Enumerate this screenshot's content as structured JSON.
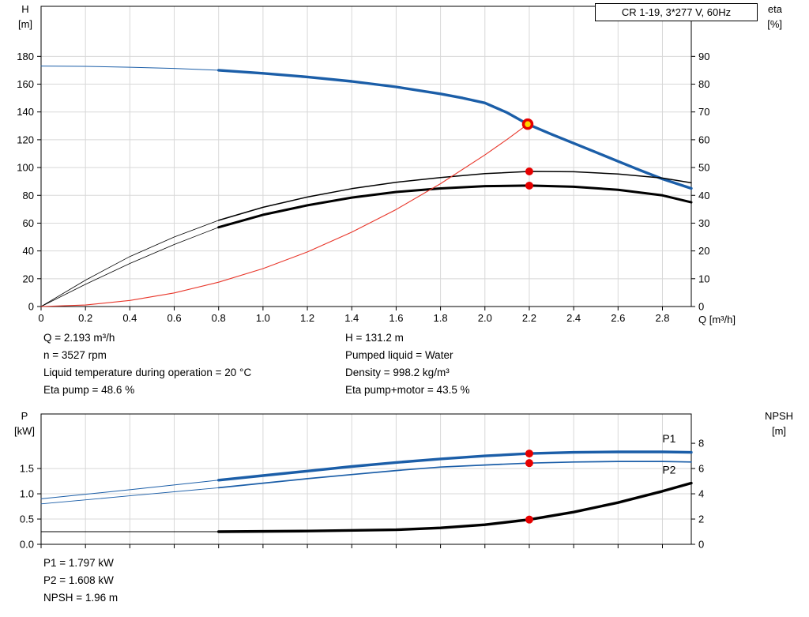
{
  "legend": {
    "label": "CR 1-19, 3*277 V, 60Hz"
  },
  "top_info": {
    "left": [
      "Q = 2.193 m³/h",
      "n = 3527 rpm",
      "Liquid temperature during operation = 20 °C",
      "Eta pump = 48.6 %"
    ],
    "right": [
      "H = 131.2 m",
      "Pumped liquid = Water",
      "Density = 998.2 kg/m³",
      "Eta pump+motor = 43.5 %"
    ]
  },
  "bottom_info": [
    "P1 = 1.797 kW",
    "P2 = 1.608 kW",
    "NPSH = 1.96 m"
  ],
  "chart_data": [
    {
      "name": "head-efficiency-chart",
      "type": "line",
      "title": "",
      "grid_color": "#d8d8d8",
      "x_axis": {
        "label": "Q [m³/h]",
        "min": 0,
        "max": 2.93,
        "show_labels": true,
        "ticks": {
          "values": [
            0,
            0.2,
            0.4,
            0.6,
            0.8,
            1.0,
            1.2,
            1.4,
            1.6,
            1.8,
            2.0,
            2.2,
            2.4,
            2.6,
            2.8
          ],
          "labels": [
            "0",
            "0.2",
            "0.4",
            "0.6",
            "0.8",
            "1.0",
            "1.2",
            "1.4",
            "1.6",
            "1.8",
            "2.0",
            "2.2",
            "2.4",
            "2.6",
            "2.8"
          ]
        }
      },
      "left_axis": {
        "name": "H",
        "unit": "[m]",
        "min": 0,
        "max": 216,
        "ticks": {
          "values": [
            0,
            20,
            40,
            60,
            80,
            100,
            120,
            140,
            160,
            180
          ],
          "labels": [
            "0",
            "20",
            "40",
            "60",
            "80",
            "100",
            "120",
            "140",
            "160",
            "180"
          ]
        }
      },
      "right_axis": {
        "name": "eta",
        "unit": "[%]",
        "min": 0,
        "max": 108,
        "ticks": {
          "values": [
            0,
            10,
            20,
            30,
            40,
            50,
            60,
            70,
            80,
            90
          ],
          "labels": [
            "0",
            "10",
            "20",
            "30",
            "40",
            "50",
            "60",
            "70",
            "80",
            "90"
          ]
        }
      },
      "series": [
        {
          "name": "head-curve-lead",
          "axis": "left",
          "color": "#1b5ea8",
          "width": 1,
          "points": [
            [
              0,
              173
            ],
            [
              0.2,
              172.8
            ],
            [
              0.4,
              172.2
            ],
            [
              0.6,
              171.3
            ],
            [
              0.8,
              170
            ]
          ]
        },
        {
          "name": "head-curve",
          "axis": "left",
          "color": "#1b5ea8",
          "width": 3.4,
          "points": [
            [
              0.8,
              170
            ],
            [
              1.0,
              167.8
            ],
            [
              1.2,
              165.2
            ],
            [
              1.4,
              162
            ],
            [
              1.6,
              158
            ],
            [
              1.8,
              153
            ],
            [
              1.9,
              150
            ],
            [
              2.0,
              146.5
            ],
            [
              2.1,
              139.5
            ],
            [
              2.193,
              131.2
            ],
            [
              2.3,
              124
            ],
            [
              2.4,
              117.5
            ],
            [
              2.5,
              111
            ],
            [
              2.6,
              104.5
            ],
            [
              2.7,
              98
            ],
            [
              2.8,
              91.8
            ],
            [
              2.93,
              85
            ]
          ]
        },
        {
          "name": "eta-pump-curve-lead",
          "axis": "right",
          "color": "#000000",
          "width": 0.8,
          "points": [
            [
              0,
              0
            ],
            [
              0.2,
              9.5
            ],
            [
              0.4,
              18
            ],
            [
              0.6,
              25
            ],
            [
              0.8,
              31
            ]
          ]
        },
        {
          "name": "eta-pump-curve",
          "axis": "right",
          "color": "#000000",
          "width": 1.5,
          "points": [
            [
              0.8,
              31
            ],
            [
              1.0,
              35.7
            ],
            [
              1.2,
              39.4
            ],
            [
              1.4,
              42.4
            ],
            [
              1.6,
              44.7
            ],
            [
              1.8,
              46.4
            ],
            [
              2.0,
              47.8
            ],
            [
              2.2,
              48.6
            ],
            [
              2.4,
              48.5
            ],
            [
              2.6,
              47.7
            ],
            [
              2.8,
              46.2
            ],
            [
              2.93,
              44.5
            ]
          ]
        },
        {
          "name": "eta-pump-motor-curve-lead",
          "axis": "right",
          "color": "#000000",
          "width": 0.8,
          "points": [
            [
              0,
              0
            ],
            [
              0.2,
              8
            ],
            [
              0.4,
              15.5
            ],
            [
              0.6,
              22.3
            ],
            [
              0.8,
              28.5
            ]
          ]
        },
        {
          "name": "eta-pump-motor-curve",
          "axis": "right",
          "color": "#000000",
          "width": 3,
          "points": [
            [
              0.8,
              28.5
            ],
            [
              1.0,
              33
            ],
            [
              1.2,
              36.4
            ],
            [
              1.4,
              39.2
            ],
            [
              1.6,
              41.2
            ],
            [
              1.8,
              42.5
            ],
            [
              2.0,
              43.3
            ],
            [
              2.2,
              43.5
            ],
            [
              2.4,
              43.1
            ],
            [
              2.6,
              42
            ],
            [
              2.8,
              40
            ],
            [
              2.93,
              37.5
            ]
          ]
        },
        {
          "name": "system-curve",
          "axis": "left",
          "color": "#e8362a",
          "width": 1.1,
          "points": [
            [
              0,
              0
            ],
            [
              0.2,
              1.1
            ],
            [
              0.4,
              4.4
            ],
            [
              0.6,
              9.8
            ],
            [
              0.8,
              17.5
            ],
            [
              1.0,
              27.3
            ],
            [
              1.2,
              39.3
            ],
            [
              1.4,
              53.5
            ],
            [
              1.6,
              69.8
            ],
            [
              1.8,
              88.4
            ],
            [
              2.0,
              109.1
            ],
            [
              2.1,
              120.3
            ],
            [
              2.193,
              131.2
            ]
          ]
        }
      ],
      "markers": [
        {
          "name": "eta-pump-point",
          "x": 2.2,
          "y": 48.6,
          "axis": "right",
          "r": 5,
          "fill": "#e60000"
        },
        {
          "name": "eta-pump-motor-point",
          "x": 2.2,
          "y": 43.5,
          "axis": "right",
          "r": 5,
          "fill": "#e60000"
        },
        {
          "name": "duty-point",
          "x": 2.193,
          "y": 131.2,
          "axis": "left",
          "r": 5.5,
          "fill": "#ffd400",
          "stroke": "#e60000",
          "stroke_width": 3.5
        }
      ],
      "annotations": []
    },
    {
      "name": "power-npsh-chart",
      "type": "line",
      "title": "",
      "grid_color": "#d8d8d8",
      "x_axis": {
        "label": "",
        "min": 0,
        "max": 2.93,
        "show_labels": false,
        "ticks": {
          "values": [
            0,
            0.2,
            0.4,
            0.6,
            0.8,
            1.0,
            1.2,
            1.4,
            1.6,
            1.8,
            2.0,
            2.2,
            2.4,
            2.6,
            2.8
          ],
          "labels": [
            "",
            "",
            "",
            "",
            "",
            "",
            "",
            "",
            "",
            "",
            "",
            "",
            "",
            "",
            ""
          ]
        }
      },
      "left_axis": {
        "name": "P",
        "unit": "[kW]",
        "min": 0,
        "max": 2.58,
        "ticks": {
          "values": [
            0,
            0.5,
            1.0,
            1.5
          ],
          "labels": [
            "0.0",
            "0.5",
            "1.0",
            "1.5"
          ]
        }
      },
      "right_axis": {
        "name": "NPSH",
        "unit": "[m]",
        "min": 0,
        "max": 10.32,
        "ticks": {
          "values": [
            0,
            2,
            4,
            6,
            8
          ],
          "labels": [
            "0",
            "2",
            "4",
            "6",
            "8"
          ]
        }
      },
      "series": [
        {
          "name": "p1-curve-lead",
          "axis": "left",
          "color": "#1b5ea8",
          "width": 1,
          "points": [
            [
              0,
              0.9
            ],
            [
              0.4,
              1.08
            ],
            [
              0.8,
              1.27
            ]
          ]
        },
        {
          "name": "p1-curve",
          "axis": "left",
          "color": "#1b5ea8",
          "width": 3.4,
          "points": [
            [
              0.8,
              1.27
            ],
            [
              1.0,
              1.36
            ],
            [
              1.2,
              1.45
            ],
            [
              1.4,
              1.54
            ],
            [
              1.6,
              1.62
            ],
            [
              1.8,
              1.69
            ],
            [
              2.0,
              1.75
            ],
            [
              2.2,
              1.797
            ],
            [
              2.4,
              1.82
            ],
            [
              2.6,
              1.83
            ],
            [
              2.8,
              1.83
            ],
            [
              2.93,
              1.82
            ]
          ]
        },
        {
          "name": "p2-curve-lead",
          "axis": "left",
          "color": "#1b5ea8",
          "width": 0.9,
          "points": [
            [
              0,
              0.8
            ],
            [
              0.4,
              0.96
            ],
            [
              0.8,
              1.12
            ]
          ]
        },
        {
          "name": "p2-curve",
          "axis": "left",
          "color": "#1b5ea8",
          "width": 1.7,
          "points": [
            [
              0.8,
              1.12
            ],
            [
              1.0,
              1.21
            ],
            [
              1.2,
              1.3
            ],
            [
              1.4,
              1.38
            ],
            [
              1.6,
              1.46
            ],
            [
              1.8,
              1.53
            ],
            [
              2.0,
              1.57
            ],
            [
              2.2,
              1.608
            ],
            [
              2.4,
              1.63
            ],
            [
              2.6,
              1.64
            ],
            [
              2.8,
              1.64
            ],
            [
              2.93,
              1.63
            ]
          ]
        },
        {
          "name": "npsh-curve-lead",
          "axis": "right",
          "color": "#000000",
          "width": 0.9,
          "points": [
            [
              0,
              1.0
            ],
            [
              0.8,
              1.0
            ]
          ]
        },
        {
          "name": "npsh-curve",
          "axis": "right",
          "color": "#000000",
          "width": 3.4,
          "points": [
            [
              0.8,
              1.0
            ],
            [
              1.2,
              1.05
            ],
            [
              1.6,
              1.15
            ],
            [
              1.8,
              1.3
            ],
            [
              2.0,
              1.55
            ],
            [
              2.2,
              1.96
            ],
            [
              2.4,
              2.55
            ],
            [
              2.6,
              3.3
            ],
            [
              2.8,
              4.2
            ],
            [
              2.93,
              4.85
            ]
          ]
        }
      ],
      "markers": [
        {
          "name": "p1-point",
          "x": 2.2,
          "y": 1.797,
          "axis": "left",
          "r": 5,
          "fill": "#e60000"
        },
        {
          "name": "p2-point",
          "x": 2.2,
          "y": 1.608,
          "axis": "left",
          "r": 5,
          "fill": "#e60000"
        },
        {
          "name": "npsh-point",
          "x": 2.2,
          "y": 1.96,
          "axis": "right",
          "r": 5,
          "fill": "#e60000"
        }
      ],
      "annotations": [
        {
          "name": "p1-curve-label",
          "text": "P1",
          "x": 2.83,
          "y": 2.02,
          "axis": "left",
          "color": "#1b5ea8"
        },
        {
          "name": "p2-curve-label",
          "text": "P2",
          "x": 2.83,
          "y": 1.4,
          "axis": "left",
          "color": "#1b5ea8"
        }
      ]
    }
  ]
}
